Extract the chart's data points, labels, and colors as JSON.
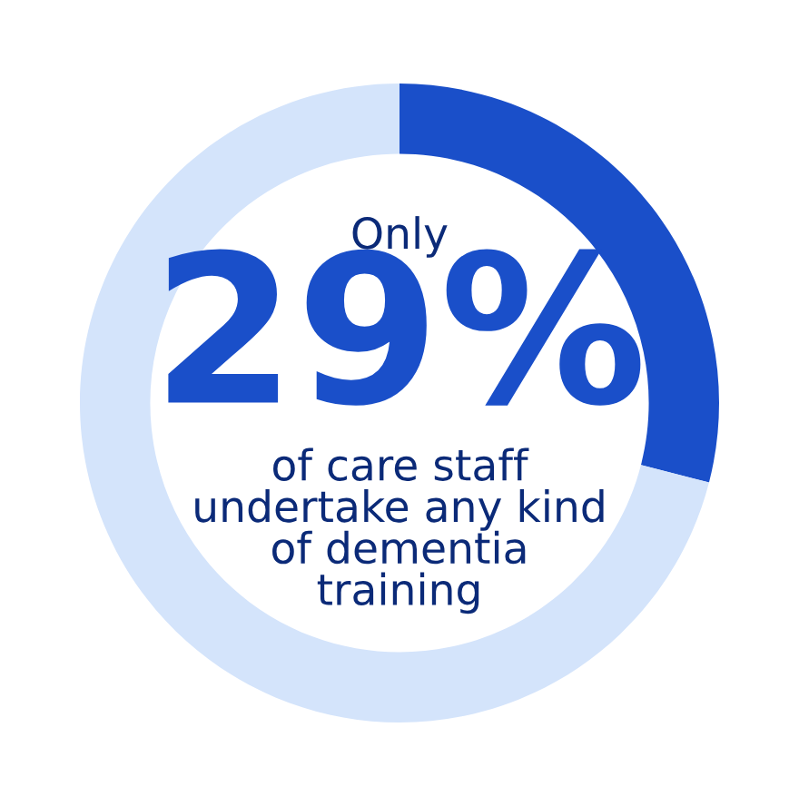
{
  "chart_data": {
    "type": "donut",
    "categories": [
      null,
      null
    ],
    "values": [
      29,
      71
    ],
    "colors": [
      "#1a4fc9",
      "#d4e4fb"
    ],
    "value_labels": [
      "29%",
      null
    ],
    "annotations": [
      "Only",
      "of care staff\nundertake any kind\nof dementia\ntraining"
    ],
    "legend": false
  }
}
